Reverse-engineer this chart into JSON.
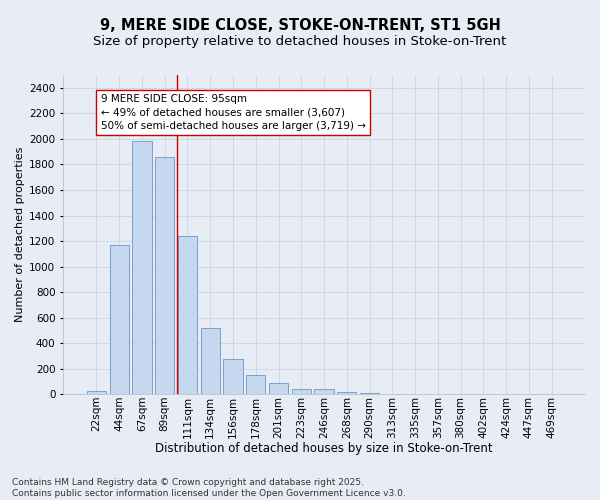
{
  "title_line1": "9, MERE SIDE CLOSE, STOKE-ON-TRENT, ST1 5GH",
  "title_line2": "Size of property relative to detached houses in Stoke-on-Trent",
  "xlabel": "Distribution of detached houses by size in Stoke-on-Trent",
  "ylabel": "Number of detached properties",
  "bar_labels": [
    "22sqm",
    "44sqm",
    "67sqm",
    "89sqm",
    "111sqm",
    "134sqm",
    "156sqm",
    "178sqm",
    "201sqm",
    "223sqm",
    "246sqm",
    "268sqm",
    "290sqm",
    "313sqm",
    "335sqm",
    "357sqm",
    "380sqm",
    "402sqm",
    "424sqm",
    "447sqm",
    "469sqm"
  ],
  "bar_values": [
    25,
    1170,
    1980,
    1860,
    1240,
    520,
    275,
    150,
    90,
    45,
    42,
    15,
    12,
    5,
    3,
    2,
    2,
    1,
    1,
    1,
    1
  ],
  "bar_color": "#c5d8f0",
  "bar_edge_color": "#5588bb",
  "vline_x": 3.55,
  "vline_color": "#cc0000",
  "annotation_line1": "9 MERE SIDE CLOSE: 95sqm",
  "annotation_line2": "← 49% of detached houses are smaller (3,607)",
  "annotation_line3": "50% of semi-detached houses are larger (3,719) →",
  "ylim": [
    0,
    2500
  ],
  "yticks": [
    0,
    200,
    400,
    600,
    800,
    1000,
    1200,
    1400,
    1600,
    1800,
    2000,
    2200,
    2400
  ],
  "grid_color": "#ccd4e0",
  "bg_color": "#e8edf5",
  "footnote": "Contains HM Land Registry data © Crown copyright and database right 2025.\nContains public sector information licensed under the Open Government Licence v3.0.",
  "title_fontsize": 10.5,
  "subtitle_fontsize": 9.5,
  "xlabel_fontsize": 8.5,
  "ylabel_fontsize": 8,
  "tick_fontsize": 7.5,
  "annotation_fontsize": 7.5,
  "footnote_fontsize": 6.5
}
